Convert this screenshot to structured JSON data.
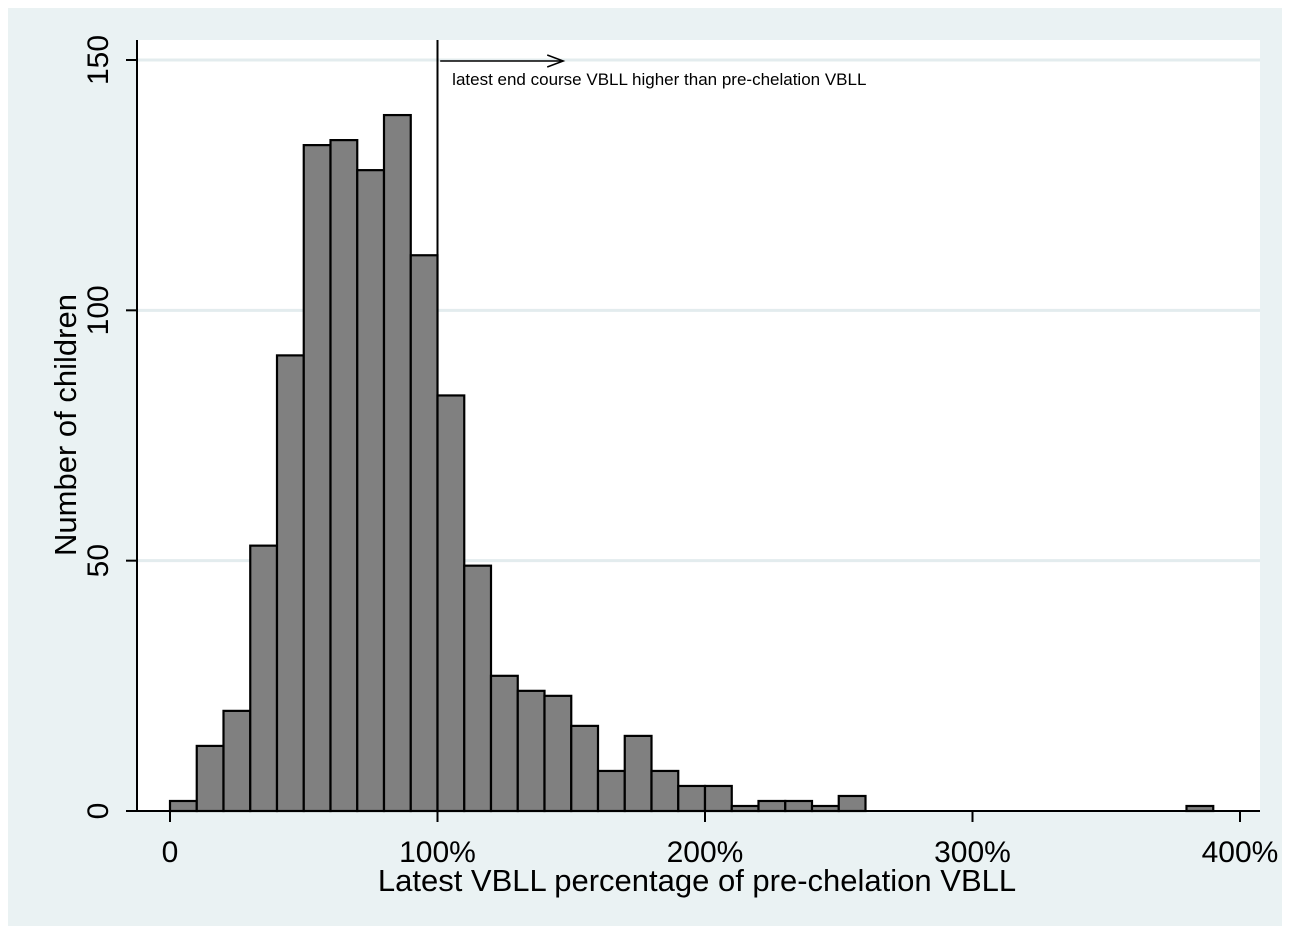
{
  "chart_data": {
    "type": "bar",
    "subtype": "histogram",
    "title": "",
    "xlabel": "Latest VBLL percentage of pre-chelation VBLL",
    "ylabel": "Number of children",
    "bin_width": 10,
    "bins_start": [
      0,
      10,
      20,
      30,
      40,
      50,
      60,
      70,
      80,
      90,
      100,
      110,
      120,
      130,
      140,
      150,
      160,
      170,
      180,
      190,
      200,
      210,
      220,
      230,
      240,
      250,
      380
    ],
    "values": [
      2,
      13,
      20,
      53,
      91,
      133,
      134,
      128,
      139,
      111,
      83,
      49,
      27,
      24,
      23,
      17,
      8,
      15,
      8,
      5,
      5,
      1,
      2,
      2,
      1,
      3,
      1
    ],
    "xlim": [
      -12,
      405
    ],
    "ylim": [
      0,
      155
    ],
    "x_ticks": [
      0,
      100,
      200,
      300,
      400
    ],
    "x_tick_labels": [
      "0",
      "100%",
      "200%",
      "300%",
      "400%"
    ],
    "y_ticks": [
      0,
      50,
      100,
      150
    ],
    "y_tick_labels": [
      "0",
      "50",
      "100",
      "150"
    ],
    "grid": "horizontal",
    "bar_color": "#808080",
    "reference_line": {
      "x": 100
    },
    "annotation": {
      "text": "latest end course VBLL higher than pre-chelation VBLL",
      "arrow_from": 101,
      "arrow_to": 147,
      "arrow_y": 150
    }
  }
}
